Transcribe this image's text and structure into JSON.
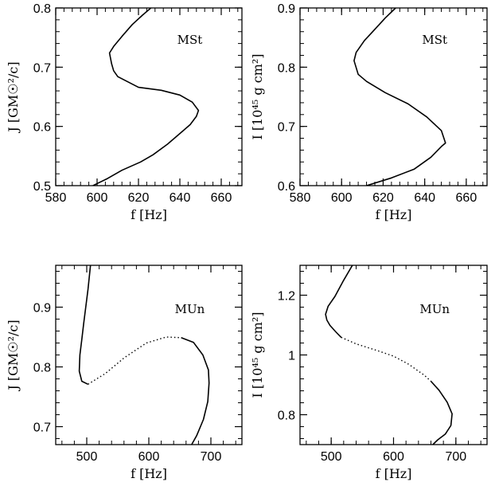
{
  "chart_data": [
    {
      "type": "line",
      "panel_tag": "MSt",
      "xlabel": "f [Hz]",
      "ylabel": "J [GM☉²/c]",
      "xlim": [
        580,
        670
      ],
      "ylim": [
        0.5,
        0.8
      ],
      "xticks": [
        580,
        600,
        620,
        640,
        660
      ],
      "xtick_labels": [
        "580",
        "600",
        "620",
        "640",
        "660"
      ],
      "yticks": [
        0.5,
        0.6,
        0.7,
        0.8
      ],
      "ytick_labels": [
        "0.5",
        "0.6",
        "0.7",
        "0.8"
      ],
      "series": [
        {
          "style": "solid",
          "points": [
            [
              598,
              0.5
            ],
            [
              605,
              0.512
            ],
            [
              612,
              0.526
            ],
            [
              621,
              0.54
            ],
            [
              627,
              0.552
            ],
            [
              634,
              0.57
            ],
            [
              640,
              0.588
            ],
            [
              645,
              0.603
            ],
            [
              648,
              0.617
            ],
            [
              649,
              0.627
            ],
            [
              646,
              0.641
            ],
            [
              640,
              0.653
            ],
            [
              631,
              0.661
            ],
            [
              620,
              0.666
            ],
            [
              610,
              0.684
            ],
            [
              608,
              0.694
            ],
            [
              607,
              0.706
            ],
            [
              606,
              0.724
            ],
            [
              608,
              0.735
            ],
            [
              612,
              0.752
            ],
            [
              617,
              0.772
            ],
            [
              622,
              0.788
            ],
            [
              626,
              0.8
            ]
          ]
        }
      ]
    },
    {
      "type": "line",
      "panel_tag": "MSt",
      "xlabel": "f [Hz]",
      "ylabel": "I [10⁴⁵ g cm²]",
      "xlim": [
        580,
        670
      ],
      "ylim": [
        0.6,
        0.9
      ],
      "xticks": [
        580,
        600,
        620,
        640,
        660
      ],
      "xtick_labels": [
        "580",
        "600",
        "620",
        "640",
        "660"
      ],
      "yticks": [
        0.6,
        0.7,
        0.8,
        0.9
      ],
      "ytick_labels": [
        "0.6",
        "0.7",
        "0.8",
        "0.9"
      ],
      "series": [
        {
          "style": "solid",
          "points": [
            [
              612,
              0.6
            ],
            [
              624,
              0.613
            ],
            [
              635,
              0.628
            ],
            [
              643,
              0.648
            ],
            [
              648,
              0.666
            ],
            [
              650,
              0.672
            ],
            [
              648,
              0.693
            ],
            [
              641,
              0.716
            ],
            [
              632,
              0.738
            ],
            [
              621,
              0.757
            ],
            [
              612,
              0.776
            ],
            [
              608,
              0.788
            ],
            [
              606,
              0.811
            ],
            [
              607,
              0.825
            ],
            [
              611,
              0.845
            ],
            [
              616,
              0.864
            ],
            [
              621,
              0.883
            ],
            [
              626,
              0.9
            ]
          ]
        }
      ]
    },
    {
      "type": "line",
      "panel_tag": "MUn",
      "xlabel": "f [Hz]",
      "ylabel": "J [GM☉²/c]",
      "xlim": [
        450,
        750
      ],
      "ylim": [
        0.67,
        0.97
      ],
      "xticks": [
        500,
        600,
        700
      ],
      "xtick_labels": [
        "500",
        "600",
        "700"
      ],
      "yticks": [
        0.7,
        0.8,
        0.9
      ],
      "ytick_labels": [
        "0.7",
        "0.8",
        "0.9"
      ],
      "series": [
        {
          "style": "solid",
          "points": [
            [
              506,
              0.97
            ],
            [
              502,
              0.93
            ],
            [
              495,
              0.872
            ],
            [
              492,
              0.846
            ],
            [
              489,
              0.82
            ],
            [
              488,
              0.793
            ],
            [
              492,
              0.776
            ],
            [
              502,
              0.771
            ]
          ]
        },
        {
          "style": "dotted",
          "points": [
            [
              502,
              0.771
            ],
            [
              530,
              0.789
            ],
            [
              560,
              0.815
            ],
            [
              596,
              0.84
            ],
            [
              628,
              0.85
            ],
            [
              652,
              0.849
            ]
          ]
        },
        {
          "style": "solid",
          "points": [
            [
              652,
              0.849
            ],
            [
              672,
              0.841
            ],
            [
              687,
              0.82
            ],
            [
              696,
              0.795
            ],
            [
              697,
              0.773
            ],
            [
              695,
              0.742
            ],
            [
              688,
              0.712
            ],
            [
              677,
              0.685
            ],
            [
              669,
              0.67
            ]
          ]
        }
      ]
    },
    {
      "type": "line",
      "panel_tag": "MUn",
      "xlabel": "f [Hz]",
      "ylabel": "I [10⁴⁵ g cm²]",
      "xlim": [
        450,
        750
      ],
      "ylim": [
        0.7,
        1.3
      ],
      "xticks": [
        500,
        600,
        700
      ],
      "xtick_labels": [
        "500",
        "600",
        "700"
      ],
      "yticks": [
        0.8,
        1.0,
        1.2
      ],
      "ytick_labels": [
        "0.8",
        "1",
        "1.2"
      ],
      "series": [
        {
          "style": "solid",
          "points": [
            [
              534,
              1.3
            ],
            [
              520,
              1.25
            ],
            [
              506,
              1.196
            ],
            [
              495,
              1.163
            ],
            [
              491,
              1.136
            ],
            [
              493,
              1.117
            ],
            [
              498,
              1.099
            ],
            [
              508,
              1.076
            ],
            [
              516,
              1.059
            ]
          ]
        },
        {
          "style": "dotted",
          "points": [
            [
              516,
              1.059
            ],
            [
              540,
              1.037
            ],
            [
              575,
              1.014
            ],
            [
              600,
              0.996
            ],
            [
              625,
              0.968
            ],
            [
              650,
              0.931
            ],
            [
              660,
              0.912
            ]
          ]
        },
        {
          "style": "solid",
          "points": [
            [
              660,
              0.912
            ],
            [
              673,
              0.882
            ],
            [
              686,
              0.842
            ],
            [
              694,
              0.803
            ],
            [
              692,
              0.764
            ],
            [
              683,
              0.735
            ],
            [
              671,
              0.716
            ],
            [
              663,
              0.7
            ]
          ]
        }
      ]
    }
  ]
}
